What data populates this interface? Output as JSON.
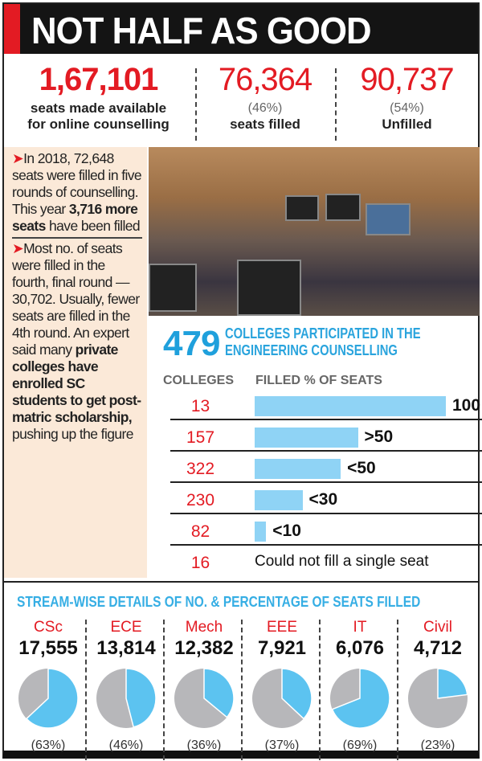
{
  "title": "NOT HALF AS GOOD",
  "stats": [
    {
      "value": "1,67,101",
      "pct": "",
      "label_lines": [
        "seats made available",
        "for online counselling"
      ]
    },
    {
      "value": "76,364",
      "pct": "(46%)",
      "label_lines": [
        "seats filled"
      ]
    },
    {
      "value": "90,737",
      "pct": "(54%)",
      "label_lines": [
        "Unfilled"
      ]
    }
  ],
  "side": {
    "bullet": "➤",
    "p1_a": "In 2018, 72,648 seats were filled in five rounds of counselling. This year ",
    "p1_b": "3,716 more seats",
    "p1_c": " have been filled",
    "p2_a": "Most no. of seats were filled in the fourth, final round — 30,702. Usually, fewer seats are filled in the 4th round. An expert said many ",
    "p2_b": "private colleges have enrolled SC students to get post-matric scholarship,",
    "p2_c": " pushing up the figure"
  },
  "colors": {
    "red": "#e31b23",
    "blue": "#1fa0dc",
    "bar": "#8fd3f5",
    "pie_filled": "#5cc3f0",
    "pie_unfilled": "#b7b7ba"
  },
  "chart_data": [
    {
      "type": "bar",
      "title_number": "479",
      "title": "COLLEGES PARTICIPATED IN THE ENGINEERING COUNSELLING",
      "col_headers": [
        "COLLEGES",
        "FILLED % OF SEATS"
      ],
      "rows": [
        {
          "colleges": "13",
          "label": "100",
          "bar_level": 100
        },
        {
          "colleges": "157",
          "label": ">50",
          "bar_level": 54
        },
        {
          "colleges": "322",
          "label": "<50",
          "bar_level": 45
        },
        {
          "colleges": "230",
          "label": "<30",
          "bar_level": 25
        },
        {
          "colleges": "82",
          "label": "<10",
          "bar_level": 6
        },
        {
          "colleges": "16",
          "label": "Could not fill a single seat",
          "bar_level": 0
        }
      ]
    },
    {
      "type": "pie",
      "title": "STREAM-WISE DETAILS OF NO. & PERCENTAGE OF SEATS FILLED",
      "streams": [
        {
          "name": "CSc",
          "seats": "17,555",
          "pct_label": "(63%)",
          "pct": 63
        },
        {
          "name": "ECE",
          "seats": "13,814",
          "pct_label": "(46%)",
          "pct": 46
        },
        {
          "name": "Mech",
          "seats": "12,382",
          "pct_label": "(36%)",
          "pct": 36
        },
        {
          "name": "EEE",
          "seats": "7,921",
          "pct_label": "(37%)",
          "pct": 37
        },
        {
          "name": "IT",
          "seats": "6,076",
          "pct_label": "(69%)",
          "pct": 69
        },
        {
          "name": "Civil",
          "seats": "4,712",
          "pct_label": "(23%)",
          "pct": 23
        }
      ]
    }
  ]
}
